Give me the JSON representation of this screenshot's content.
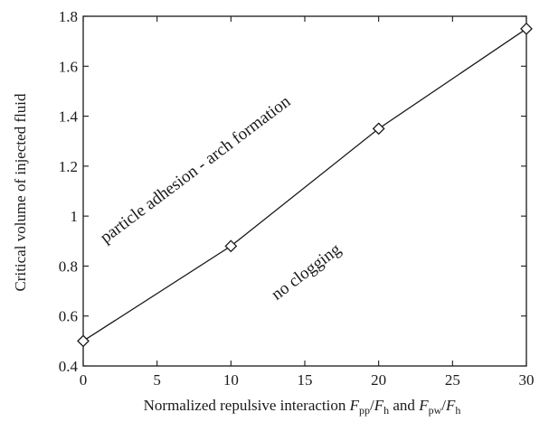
{
  "chart_data": {
    "type": "line",
    "title": "",
    "xlabel": "Normalized repulsive interaction F",
    "xlabel_parts": {
      "lead": "Normalized repulsive interaction ",
      "f1": "F",
      "sub1": "pp",
      "slash1": "/",
      "f2": "F",
      "sub2": "h",
      "mid": " and ",
      "f3": "F",
      "sub3": "pw",
      "slash2": "/",
      "f4": "F",
      "sub4": "h"
    },
    "ylabel": "Critical volume of injected fluid",
    "xlim": [
      0,
      30
    ],
    "ylim": [
      0.4,
      1.8
    ],
    "xticks": [
      0,
      5,
      10,
      15,
      20,
      25,
      30
    ],
    "xtick_labels": [
      "0",
      "5",
      "10",
      "15",
      "20",
      "25",
      "30"
    ],
    "yticks": [
      0.4,
      0.6,
      0.8,
      1.0,
      1.2,
      1.4,
      1.6,
      1.8
    ],
    "ytick_labels": [
      "0.4",
      "0.6",
      "0.8",
      "1",
      "1.2",
      "1.4",
      "1.6",
      "1.8"
    ],
    "grid": false,
    "series": [
      {
        "x": [
          0,
          10,
          20,
          30
        ],
        "values": [
          0.5,
          0.88,
          1.35,
          1.75
        ],
        "marker": "diamond",
        "color": "#1a1a1a"
      }
    ],
    "annotations": [
      {
        "text": "particle adhesion - arch formation",
        "x": 7.8,
        "y": 1.17,
        "angle": -37
      },
      {
        "text": "no clogging",
        "x": 15.3,
        "y": 0.76,
        "angle": -37
      }
    ]
  }
}
